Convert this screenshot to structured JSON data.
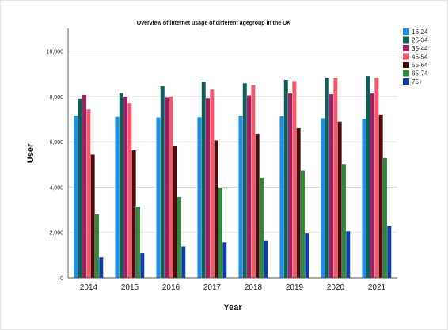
{
  "chart_data": {
    "type": "bar",
    "title": "Overview of internet usage of different agegroup in the UK",
    "xlabel": "Year",
    "ylabel": "User",
    "categories": [
      "2014",
      "2015",
      "2016",
      "2017",
      "2018",
      "2019",
      "2020",
      "2021"
    ],
    "ylim": [
      0,
      11000
    ],
    "yticks": [
      0,
      2000,
      4000,
      6000,
      8000,
      10000
    ],
    "ytick_labels": [
      "0",
      "2,000",
      "4,000",
      "6,000",
      "8,000",
      "10,000"
    ],
    "grid": "horizontal",
    "legend_position": "right",
    "series": [
      {
        "name": "16-24",
        "color": "#1f8fe5",
        "values": [
          7150,
          7100,
          7070,
          7080,
          7150,
          7130,
          7040,
          7000
        ]
      },
      {
        "name": "25-34",
        "color": "#0f5e5a",
        "values": [
          7900,
          8150,
          8450,
          8650,
          8580,
          8730,
          8830,
          8900
        ]
      },
      {
        "name": "35-44",
        "color": "#9e1f63",
        "values": [
          8070,
          7990,
          7950,
          7920,
          8050,
          8130,
          8100,
          8130
        ]
      },
      {
        "name": "45-54",
        "color": "#f05a6a",
        "values": [
          7430,
          7710,
          8000,
          8300,
          8500,
          8680,
          8820,
          8820
        ]
      },
      {
        "name": "55-64",
        "color": "#4d0a0f",
        "values": [
          5430,
          5620,
          5830,
          6060,
          6360,
          6600,
          6890,
          7200
        ]
      },
      {
        "name": "65-74",
        "color": "#2e8a3a",
        "values": [
          2800,
          3140,
          3560,
          3950,
          4400,
          4730,
          5020,
          5280
        ]
      },
      {
        "name": "75+",
        "color": "#0a3ea8",
        "values": [
          900,
          1080,
          1380,
          1560,
          1650,
          1950,
          2050,
          2270
        ]
      }
    ]
  }
}
